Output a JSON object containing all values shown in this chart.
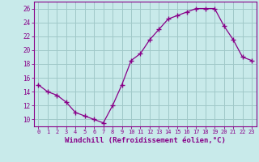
{
  "x": [
    0,
    1,
    2,
    3,
    4,
    5,
    6,
    7,
    8,
    9,
    10,
    11,
    12,
    13,
    14,
    15,
    16,
    17,
    18,
    19,
    20,
    21,
    22,
    23
  ],
  "y": [
    15.0,
    14.0,
    13.5,
    12.5,
    11.0,
    10.5,
    10.0,
    9.5,
    12.0,
    15.0,
    18.5,
    19.5,
    21.5,
    23.0,
    24.5,
    25.0,
    25.5,
    26.0,
    26.0,
    26.0,
    23.5,
    21.5,
    19.0,
    18.5
  ],
  "line_color": "#880088",
  "marker": "+",
  "marker_size": 4,
  "bg_color": "#c8eaea",
  "grid_color": "#a0c8c8",
  "xlabel": "Windchill (Refroidissement éolien,°C)",
  "xlabel_fontsize": 6.5,
  "xtick_labels": [
    "0",
    "1",
    "2",
    "3",
    "4",
    "5",
    "6",
    "7",
    "8",
    "9",
    "10",
    "11",
    "12",
    "13",
    "14",
    "15",
    "16",
    "17",
    "18",
    "19",
    "20",
    "21",
    "22",
    "23"
  ],
  "ytick_values": [
    10,
    12,
    14,
    16,
    18,
    20,
    22,
    24,
    26
  ],
  "ylim": [
    9.0,
    27.0
  ],
  "xlim": [
    -0.5,
    23.5
  ]
}
